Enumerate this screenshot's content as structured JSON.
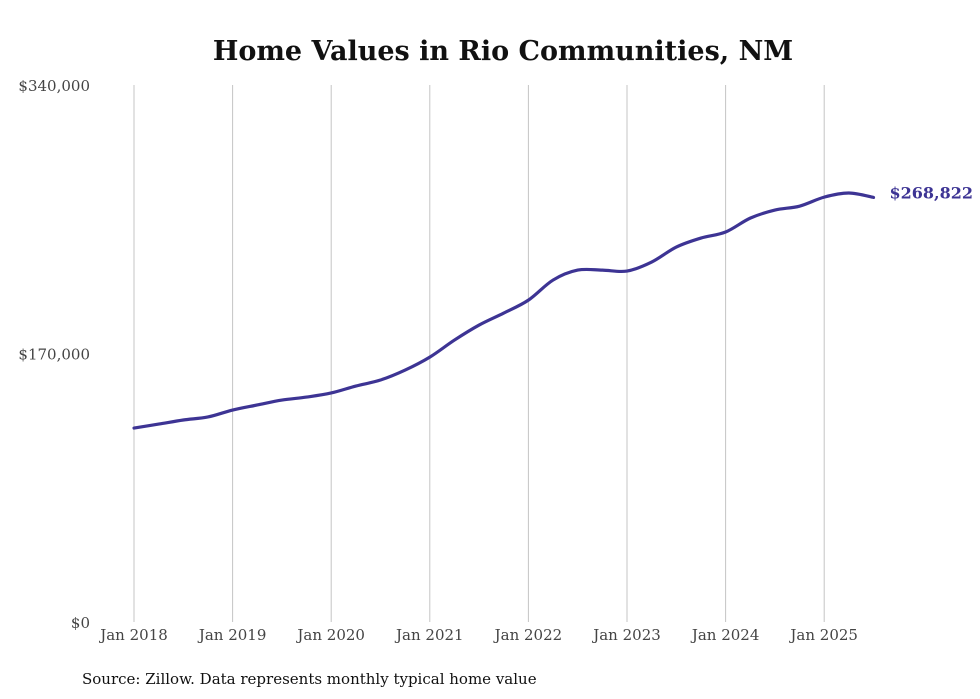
{
  "chart_data": {
    "type": "line",
    "title": "Home Values in Rio Communities, NM",
    "xlabel": "",
    "ylabel": "",
    "source": "Source: Zillow. Data represents monthly typical home value",
    "ylim": [
      0,
      340000
    ],
    "y_ticks": [
      {
        "value": 0,
        "label": "$0"
      },
      {
        "value": 170000,
        "label": "$170,000"
      },
      {
        "value": 340000,
        "label": "$340,000"
      }
    ],
    "x_ticks": [
      {
        "value": 2018,
        "label": "Jan 2018"
      },
      {
        "value": 2019,
        "label": "Jan 2019"
      },
      {
        "value": 2020,
        "label": "Jan 2020"
      },
      {
        "value": 2021,
        "label": "Jan 2021"
      },
      {
        "value": 2022,
        "label": "Jan 2022"
      },
      {
        "value": 2023,
        "label": "Jan 2023"
      },
      {
        "value": 2024,
        "label": "Jan 2024"
      },
      {
        "value": 2025,
        "label": "Jan 2025"
      }
    ],
    "grid": "vertical",
    "line_color": "#3d3494",
    "end_label": "$268,822",
    "series": [
      {
        "name": "Typical home value",
        "x": [
          2018,
          2018.25,
          2018.5,
          2018.75,
          2019,
          2019.25,
          2019.5,
          2019.75,
          2020,
          2020.25,
          2020.5,
          2020.75,
          2021,
          2021.25,
          2021.5,
          2021.75,
          2022,
          2022.25,
          2022.5,
          2022.75,
          2023,
          2023.25,
          2023.5,
          2023.75,
          2024,
          2024.25,
          2024.5,
          2024.75,
          2025,
          2025.25,
          2025.5
        ],
        "values": [
          122800,
          125300,
          127900,
          129800,
          134200,
          137400,
          140500,
          142400,
          145000,
          149400,
          153200,
          159500,
          167700,
          178500,
          188000,
          195600,
          203800,
          216500,
          222800,
          222800,
          222200,
          227900,
          237400,
          243100,
          246900,
          255700,
          260800,
          263300,
          269000,
          271600,
          268822
        ]
      }
    ]
  }
}
